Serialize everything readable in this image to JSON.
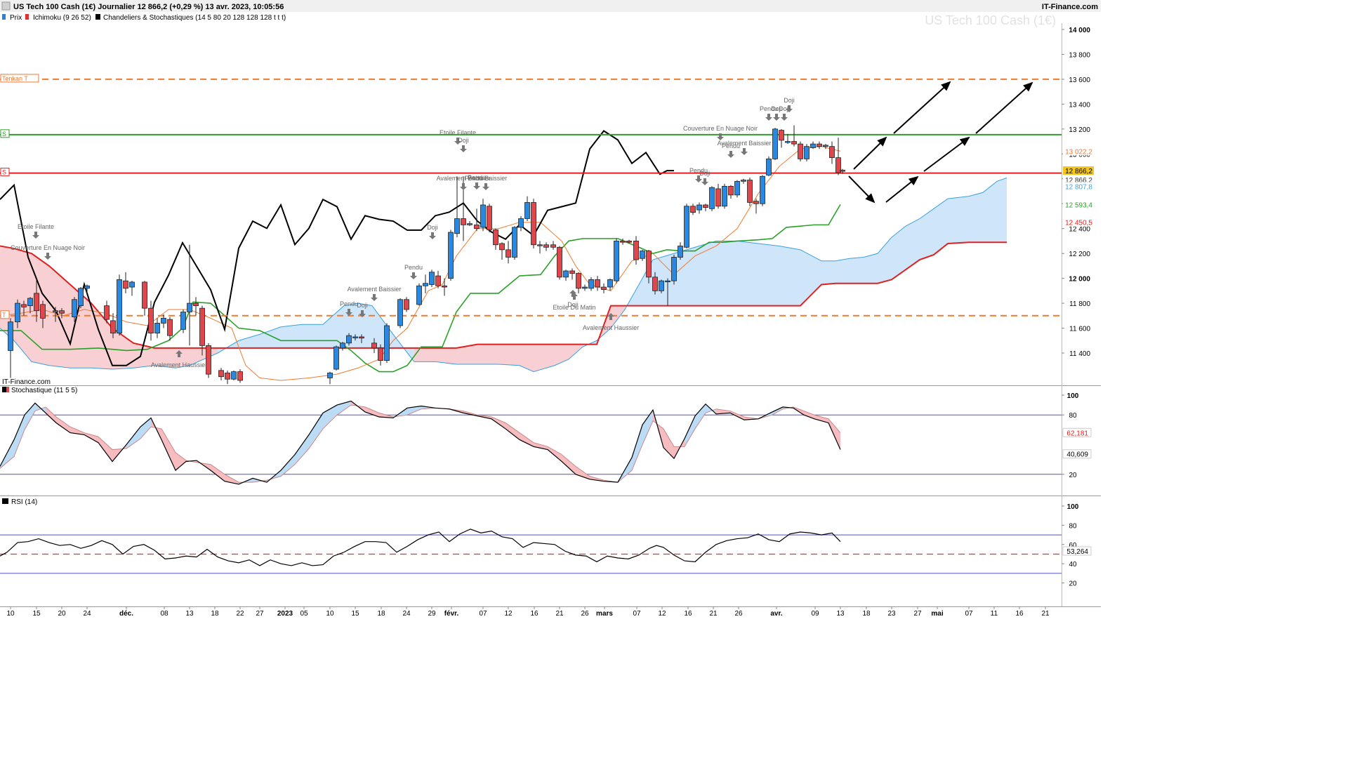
{
  "header": {
    "title": "US Tech 100 Cash (1€) Journalier 12 866,2 (+0,29 %) 13 avr. 2023, 10:05:56",
    "brand": "IT-Finance.com",
    "watermark": "US Tech 100 Cash (1€)",
    "watermark_bottom": "IT-Finance.com"
  },
  "legend": [
    {
      "label": "Prix",
      "color": "#2b7fd8"
    },
    {
      "label": "Ichimoku (9 26 52)",
      "color": "#e03030"
    },
    {
      "label": "Chandeliers & Stochastiques (14 5 80 20 128 128 128 t t t)",
      "color": "#000000"
    }
  ],
  "chart_data": [
    {
      "type": "candlestick",
      "title": "US Tech 100 Cash (1€)",
      "y_axis_ticks": [
        "14 000",
        "13 800",
        "13 600",
        "13 400",
        "13 200",
        "13 000",
        "12 800",
        "12 600",
        "12 400",
        "12 200",
        "12 000",
        "11 800",
        "11 600",
        "11 400"
      ],
      "y_axis_values": [
        14000,
        13800,
        13600,
        13400,
        13200,
        13000,
        12800,
        12600,
        12400,
        12200,
        12000,
        11800,
        11600,
        11400
      ],
      "x_axis_ticks": [
        "10",
        "15",
        "20",
        "24",
        "déc.",
        "08",
        "13",
        "18",
        "22",
        "27",
        "2023",
        "05",
        "10",
        "15",
        "18",
        "24",
        "29",
        "févr.",
        "07",
        "12",
        "16",
        "21",
        "26",
        "mars",
        "07",
        "12",
        "16",
        "21",
        "26",
        "avr.",
        "09",
        "13",
        "18",
        "23",
        "27",
        "mai",
        "07",
        "11",
        "16",
        "21"
      ],
      "horizontal_levels": [
        {
          "label": "Tenkan T",
          "value": 13600,
          "color": "#f07a30",
          "style": "dashed"
        },
        {
          "label": "S",
          "value": 13155,
          "color": "#2aa02a",
          "style": "solid"
        },
        {
          "label": "S",
          "value": 12846,
          "color": "#e02020",
          "style": "solid"
        },
        {
          "label": "T",
          "value": 11700,
          "color": "#f07a30",
          "style": "dashed"
        }
      ],
      "price_labels": [
        {
          "text": "13 022,2",
          "color": "#f07a30",
          "value": 13022.2
        },
        {
          "text": "12 866,2",
          "color": "#f5c518",
          "value": 12866.2
        },
        {
          "text": "12 866,2",
          "color": "#333333",
          "value": 12866.2
        },
        {
          "text": "12 807,8",
          "color": "#3aa0e0",
          "value": 12807.8
        },
        {
          "text": "12 593,4",
          "color": "#2aa02a",
          "value": 12593.4
        },
        {
          "text": "12 450,5",
          "color": "#e02020",
          "value": 12450.5
        }
      ],
      "annotations": [
        "Etoile Filante",
        "Couverture En Nuage Noir",
        "Avalement Haussier",
        "Pendu",
        "Doji",
        "Avalement Baissier",
        "Pendu",
        "Doji",
        "Pendu",
        "Etoile Filante",
        "Doji",
        "Avalement Baissier",
        "Pendu Baissier",
        "Doji",
        "Etoile Du Matin",
        "Avalement Haussier",
        "Doji",
        "Couverture En Nuage Noir",
        "Avalement Baissier",
        "Pendu",
        "Pendu",
        "Doji",
        "Pendu",
        "Doji",
        "Doji"
      ]
    },
    {
      "type": "line",
      "title": "Stochastique (11 5 5)",
      "y_axis_ticks": [
        "100",
        "80",
        "20"
      ],
      "levels": [
        80,
        20
      ],
      "values": {
        "k": "62,181",
        "d": "40,609"
      }
    },
    {
      "type": "line",
      "title": "RSI (14)",
      "y_axis_ticks": [
        "100",
        "80",
        "60",
        "40",
        "20"
      ],
      "levels": [
        70,
        50,
        30
      ],
      "values": {
        "rsi": "53,264"
      }
    }
  ],
  "colors": {
    "bull": "#2b88e0",
    "bear": "#e0474c",
    "cloud_bull": "#cfe6fa",
    "cloud_bear": "#f8cfd2",
    "tenkan": "#f07a30",
    "kijun": "#e02020",
    "chikou": "#2aa02a",
    "stoch_osc": "#000000"
  }
}
